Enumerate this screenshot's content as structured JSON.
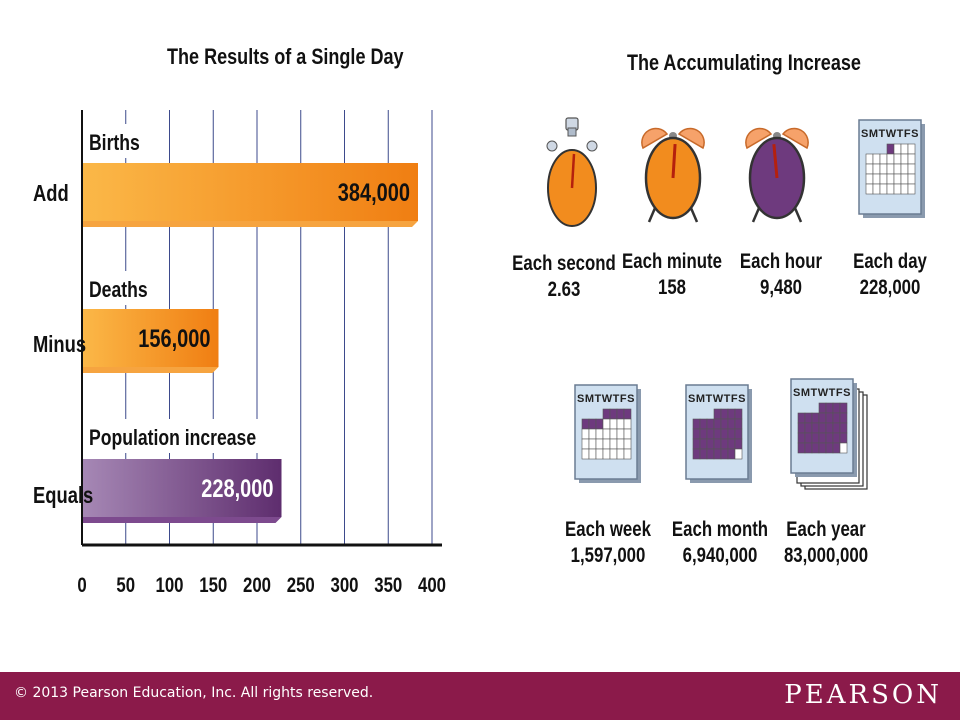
{
  "left_title": "The Results of a Single Day",
  "right_title": "The Accumulating Increase",
  "chart_data": {
    "type": "bar",
    "orientation": "horizontal",
    "unit": "thousands",
    "categories": [
      "Add",
      "Minus",
      "Equals"
    ],
    "bar_labels": [
      "Births",
      "Deaths",
      "Population increase"
    ],
    "values": [
      384,
      156,
      228
    ],
    "value_labels": [
      "384,000",
      "156,000",
      "228,000"
    ],
    "xlim": [
      0,
      400
    ],
    "x_ticks": [
      "0",
      "50",
      "100",
      "150",
      "200",
      "250",
      "300",
      "350",
      "400"
    ],
    "grid": true,
    "colors": {
      "births": "#f28c1e",
      "deaths": "#f28c1e",
      "increase": "#6e3a7e"
    }
  },
  "rates_top": [
    {
      "label": "Each second",
      "value": "2.63",
      "icon": "stopwatch-icon"
    },
    {
      "label": "Each minute",
      "value": "158",
      "icon": "alarm-clock-icon"
    },
    {
      "label": "Each hour",
      "value": "9,480",
      "icon": "alarm-clock-icon"
    },
    {
      "label": "Each day",
      "value": "228,000",
      "icon": "calendar-icon"
    }
  ],
  "rates_bottom": [
    {
      "label": "Each week",
      "value": "1,597,000",
      "icon": "calendar-icon"
    },
    {
      "label": "Each month",
      "value": "6,940,000",
      "icon": "calendar-icon"
    },
    {
      "label": "Each year",
      "value": "83,000,000",
      "icon": "calendar-stack-icon"
    }
  ],
  "calendar_header": "SMTWTFS",
  "footer": {
    "copyright": "© 2013  Pearson Education, Inc. All rights reserved.",
    "brand": "PEARSON"
  },
  "colors": {
    "orange": "#f28c1e",
    "purple": "#6e3a7e",
    "calendar_bg": "#cfe0f0",
    "footer": "#8b1a4a"
  }
}
